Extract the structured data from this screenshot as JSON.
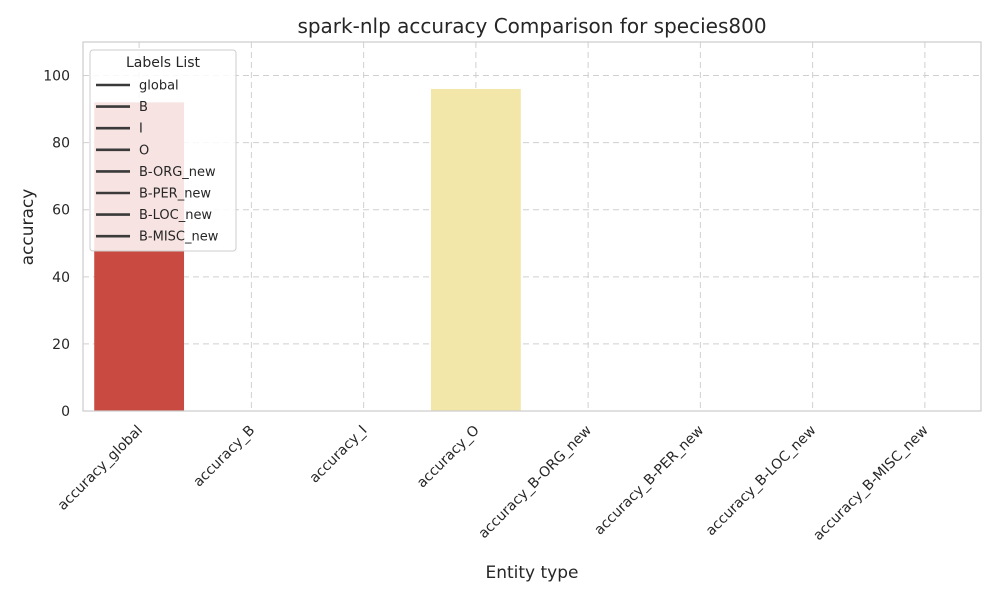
{
  "chart_data": {
    "type": "bar",
    "title": "spark-nlp accuracy Comparison for species800",
    "xlabel": "Entity type",
    "ylabel": "accuracy",
    "ylim": [
      0,
      110
    ],
    "yticks": [
      0,
      20,
      40,
      60,
      80,
      100
    ],
    "grid": true,
    "legend_position": "top-left",
    "categories": [
      "accuracy_global",
      "accuracy_B",
      "accuracy_I",
      "accuracy_O",
      "accuracy_B-ORG_new",
      "accuracy_B-PER_new",
      "accuracy_B-LOC_new",
      "accuracy_B-MISC_new"
    ],
    "values": [
      92,
      0,
      0,
      96,
      0,
      0,
      0,
      0
    ],
    "bar_colors": [
      "#c94a41",
      "#e8ad84",
      "#f3c98f",
      "#f2e6a8",
      "#d4e6a0",
      "#a7d39f",
      "#7fbfa2",
      "#5a9fbf"
    ],
    "legend": {
      "title": "Labels List",
      "entries": [
        "global",
        "B",
        "I",
        "O",
        "B-ORG_new",
        "B-PER_new",
        "B-LOC_new",
        "B-MISC_new"
      ]
    }
  }
}
